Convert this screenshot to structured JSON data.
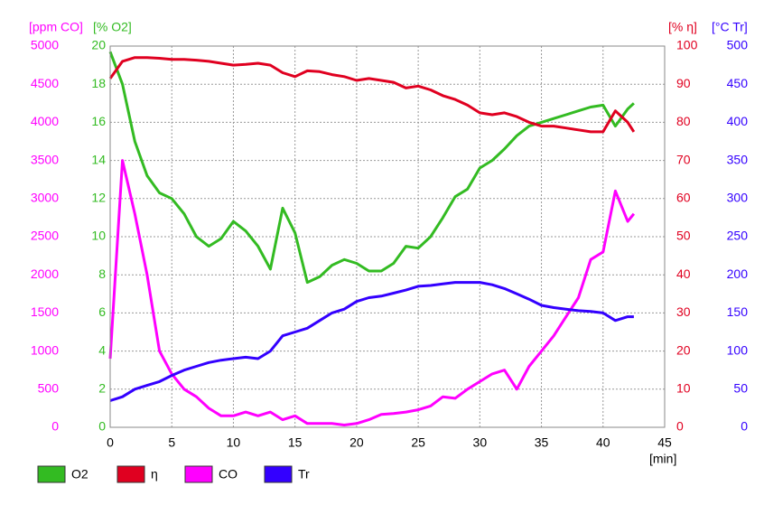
{
  "chart_data": {
    "type": "line",
    "x": [
      0,
      1,
      2,
      3,
      4,
      5,
      6,
      7,
      8,
      9,
      10,
      11,
      12,
      13,
      14,
      15,
      16,
      17,
      18,
      19,
      20,
      21,
      22,
      23,
      24,
      25,
      26,
      27,
      28,
      29,
      30,
      31,
      32,
      33,
      34,
      35,
      36,
      37,
      38,
      39,
      40,
      41,
      42,
      42.5
    ],
    "xlim": [
      0,
      45
    ],
    "xticks": [
      0,
      5,
      10,
      15,
      20,
      25,
      30,
      35,
      40,
      45
    ],
    "xlabel": "[min]",
    "grid": true,
    "axes": [
      {
        "label": "[ppm CO]",
        "color": "#ff00ff",
        "side": "left",
        "lim": [
          0,
          5000
        ],
        "ticks": [
          0,
          500,
          1000,
          1500,
          2000,
          2500,
          3000,
          3500,
          4000,
          4500,
          5000
        ]
      },
      {
        "label": "[% O2]",
        "color": "#33bb22",
        "side": "left",
        "lim": [
          0,
          20
        ],
        "ticks": [
          0,
          2,
          4,
          6,
          8,
          10,
          12,
          14,
          16,
          18,
          20
        ]
      },
      {
        "label": "[% η]",
        "color": "#e00020",
        "side": "right",
        "lim": [
          0,
          100
        ],
        "ticks": [
          0,
          10,
          20,
          30,
          40,
          50,
          60,
          70,
          80,
          90,
          100
        ]
      },
      {
        "label": "[°C Tr]",
        "color": "#3300ff",
        "side": "right",
        "lim": [
          0,
          500
        ],
        "ticks": [
          0,
          50,
          100,
          150,
          200,
          250,
          300,
          350,
          400,
          450,
          500
        ]
      }
    ],
    "series": [
      {
        "name": "O2",
        "color": "#33bb22",
        "axis": 1,
        "values": [
          19.7,
          18,
          15,
          13.2,
          12.3,
          12,
          11.2,
          10,
          9.5,
          9.9,
          10.8,
          10.3,
          9.5,
          8.3,
          11.5,
          10.2,
          7.6,
          7.9,
          8.5,
          8.8,
          8.6,
          8.2,
          8.2,
          8.6,
          9.5,
          9.4,
          10,
          11,
          12.1,
          12.5,
          13.6,
          14,
          14.6,
          15.3,
          15.8,
          16,
          16.2,
          16.4,
          16.6,
          16.8,
          16.9,
          15.8,
          16.7,
          17
        ]
      },
      {
        "name": "η",
        "color": "#e00020",
        "axis": 2,
        "values": [
          91.5,
          96,
          97,
          97,
          96.8,
          96.5,
          96.5,
          96.3,
          96,
          95.5,
          95,
          95.2,
          95.5,
          95,
          93,
          92,
          93.5,
          93.3,
          92.5,
          92,
          91,
          91.5,
          91,
          90.5,
          89,
          89.5,
          88.5,
          87,
          86,
          84.5,
          82.5,
          82,
          82.5,
          81.5,
          80,
          79,
          79,
          78.5,
          78,
          77.5,
          77.5,
          83,
          80,
          77.5
        ]
      },
      {
        "name": "CO",
        "color": "#ff00ff",
        "axis": 0,
        "values": [
          900,
          3500,
          2800,
          2000,
          1000,
          700,
          500,
          400,
          250,
          150,
          150,
          200,
          150,
          200,
          100,
          150,
          50,
          50,
          50,
          30,
          50,
          100,
          170,
          180,
          200,
          230,
          280,
          400,
          380,
          500,
          600,
          700,
          750,
          500,
          800,
          1000,
          1200,
          1450,
          1700,
          2200,
          2300,
          3100,
          2700,
          2800
        ]
      },
      {
        "name": "Tr",
        "color": "#3300ff",
        "axis": 3,
        "values": [
          35,
          40,
          50,
          55,
          60,
          68,
          75,
          80,
          85,
          88,
          90,
          92,
          90,
          100,
          120,
          125,
          130,
          140,
          150,
          155,
          165,
          170,
          172,
          176,
          180,
          185,
          186,
          188,
          190,
          190,
          190,
          187,
          182,
          175,
          168,
          160,
          157,
          155,
          153,
          152,
          150,
          140,
          145,
          145
        ]
      }
    ]
  }
}
